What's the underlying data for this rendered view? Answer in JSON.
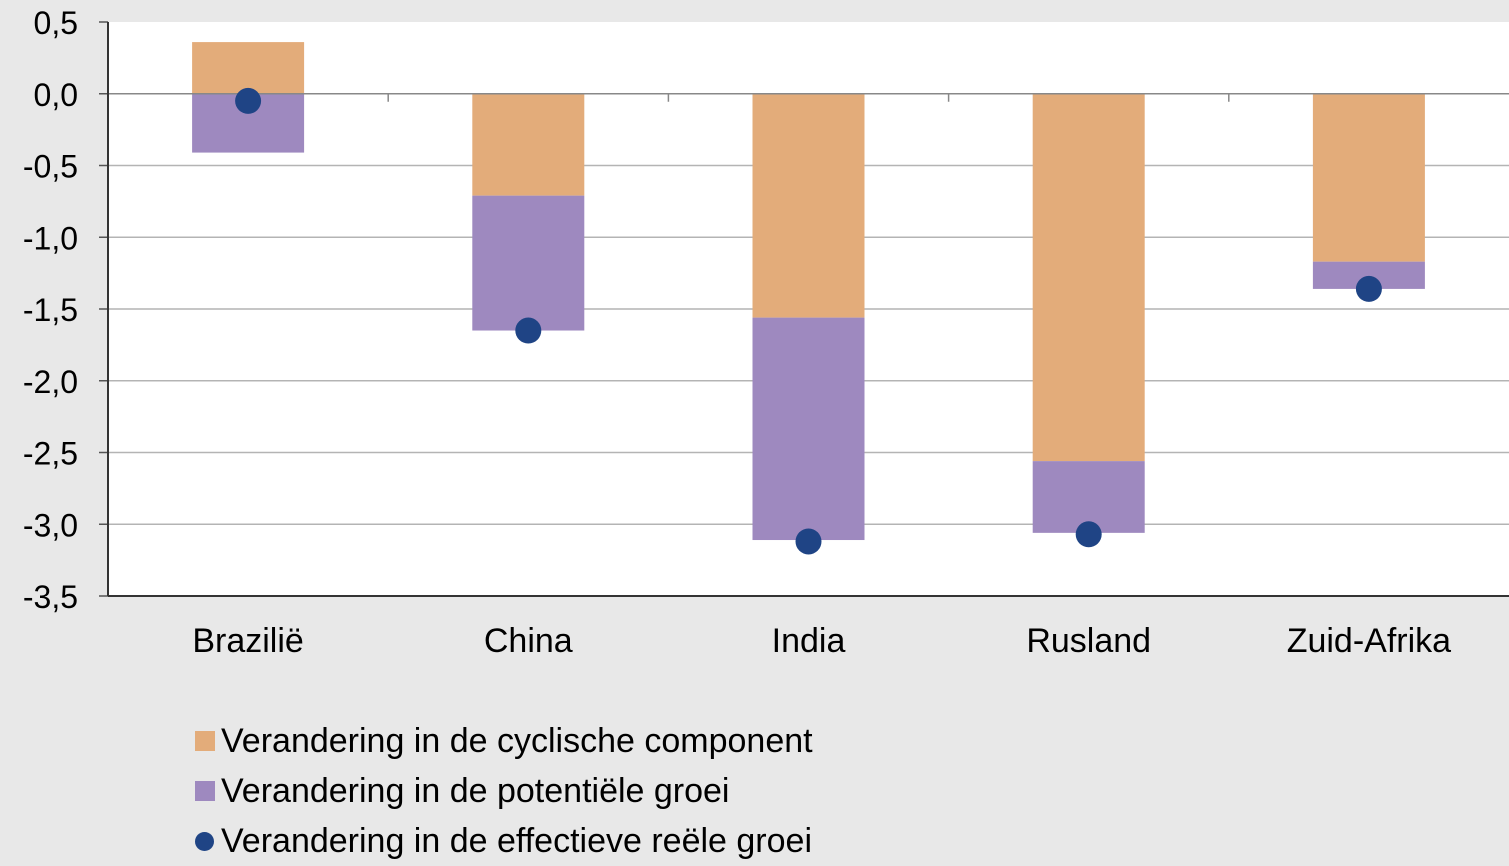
{
  "chart_data": {
    "type": "bar",
    "stacked": true,
    "categories": [
      "Brazilië",
      "China",
      "India",
      "Rusland",
      "Zuid-Afrika"
    ],
    "series": [
      {
        "name": "Verandering in de cyclische component",
        "type": "bar",
        "color": "#e3ac7a",
        "values": [
          0.36,
          -0.71,
          -1.56,
          -2.56,
          -1.17
        ]
      },
      {
        "name": "Verandering in de potentiële groei",
        "type": "bar",
        "color": "#9e89bf",
        "values": [
          -0.41,
          -0.94,
          -1.55,
          -0.5,
          -0.19
        ]
      },
      {
        "name": "Verandering in de effectieve reële groei",
        "type": "scatter",
        "color": "#1f4485",
        "values": [
          -0.05,
          -1.65,
          -3.12,
          -3.07,
          -1.36
        ]
      }
    ],
    "ylim": [
      -3.5,
      0.5
    ],
    "yticks": [
      "0,5",
      "0,0",
      "-0,5",
      "-1,0",
      "-1,5",
      "-2,0",
      "-2,5",
      "-3,0",
      "-3,5"
    ],
    "grid": true,
    "legend_position": "bottom-left"
  }
}
